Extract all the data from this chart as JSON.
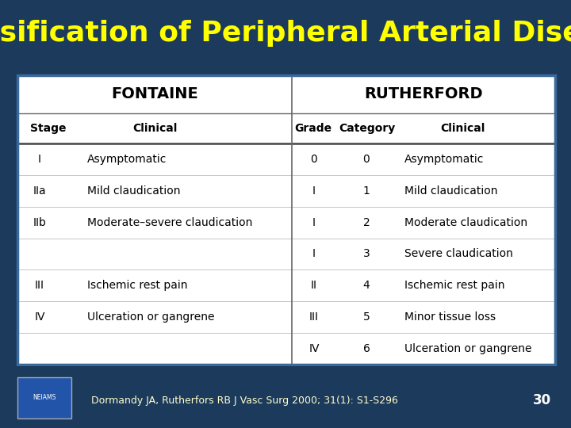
{
  "title": "Classification of Peripheral Arterial Disease",
  "title_color": "#FFFF00",
  "bg_color": "#1B3A5C",
  "table_bg": "#FFFFFF",
  "footer_text": "Dormandy JA, Rutherfors RB J Vasc Surg 2000; 31(1): S1-S296",
  "footer_number": "30",
  "fontaine_header": "FONTAINE",
  "rutherford_header": "RUTHERFORD",
  "col_headers": [
    "Stage",
    "Clinical",
    "Grade",
    "Category",
    "Clinical"
  ],
  "rows": [
    [
      "I",
      "Asymptomatic",
      "0",
      "0",
      "Asymptomatic"
    ],
    [
      "IIa",
      "Mild claudication",
      "I",
      "1",
      "Mild claudication"
    ],
    [
      "IIb",
      "Moderate–severe claudication",
      "I",
      "2",
      "Moderate claudication"
    ],
    [
      "",
      "",
      "I",
      "3",
      "Severe claudication"
    ],
    [
      "III",
      "Ischemic rest pain",
      "II",
      "4",
      "Ischemic rest pain"
    ],
    [
      "IV",
      "Ulceration or gangrene",
      "III",
      "5",
      "Minor tissue loss"
    ],
    [
      "",
      "",
      "IV",
      "6",
      "Ulceration or gangrene"
    ]
  ]
}
